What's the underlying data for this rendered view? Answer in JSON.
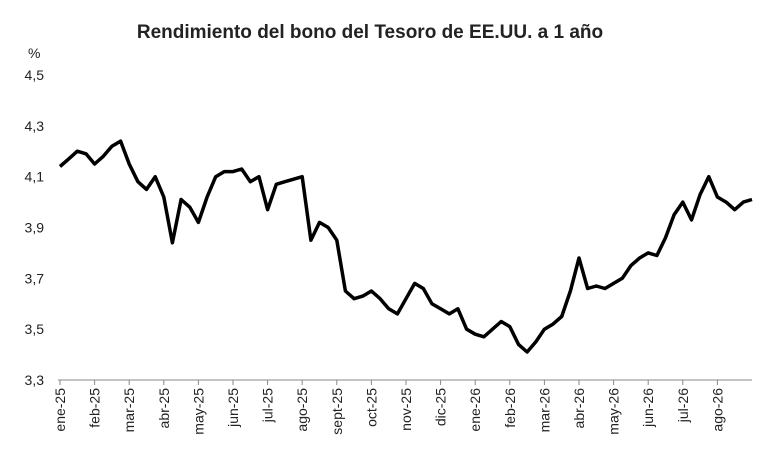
{
  "chart_data": {
    "type": "line",
    "title": "Rendimiento del bono del Tesoro de EE.UU. a 1 año",
    "y_label": "%",
    "categories": [
      "ene-25",
      null,
      null,
      null,
      "feb-25",
      null,
      null,
      null,
      "mar-25",
      null,
      null,
      null,
      "abr-25",
      null,
      null,
      null,
      "may-25",
      null,
      null,
      null,
      "jun-25",
      null,
      null,
      null,
      "jul-25",
      null,
      null,
      null,
      "ago-25",
      null,
      null,
      null,
      "sept-25",
      null,
      null,
      null,
      "oct-25",
      null,
      null,
      null,
      "nov-25",
      null,
      null,
      null,
      "dic-25",
      null,
      null,
      null,
      "ene-26",
      null,
      null,
      null,
      "feb-26",
      null,
      null,
      null,
      "mar-26",
      null,
      null,
      null,
      "abr-26",
      null,
      null,
      null,
      "may-26",
      null,
      null,
      null,
      "jun-26",
      null,
      null,
      null,
      "jul-26",
      null,
      null,
      null,
      "ago-26",
      null,
      null,
      null,
      null
    ],
    "series": [
      {
        "name": "Rendimiento",
        "color": "#000000",
        "values": [
          4.14,
          4.17,
          4.2,
          4.19,
          4.15,
          4.18,
          4.22,
          4.24,
          4.15,
          4.08,
          4.05,
          4.1,
          4.02,
          3.84,
          4.01,
          3.98,
          3.92,
          4.02,
          4.1,
          4.12,
          4.12,
          4.13,
          4.08,
          4.1,
          3.97,
          4.07,
          4.08,
          4.09,
          4.1,
          3.85,
          3.92,
          3.9,
          3.85,
          3.65,
          3.62,
          3.63,
          3.65,
          3.62,
          3.58,
          3.56,
          3.62,
          3.68,
          3.66,
          3.6,
          3.58,
          3.56,
          3.58,
          3.5,
          3.48,
          3.47,
          3.5,
          3.53,
          3.51,
          3.44,
          3.41,
          3.45,
          3.5,
          3.52,
          3.55,
          3.65,
          3.78,
          3.66,
          3.67,
          3.66,
          3.68,
          3.7,
          3.75,
          3.78,
          3.8,
          3.79,
          3.86,
          3.95,
          4.0,
          3.93,
          4.03,
          4.1,
          4.02,
          4.0,
          3.97,
          4.0,
          4.01
        ]
      }
    ],
    "ylim": [
      3.3,
      4.5
    ],
    "yticks": [
      {
        "value": 3.3,
        "label": "3,3"
      },
      {
        "value": 3.5,
        "label": "3,5"
      },
      {
        "value": 3.7,
        "label": "3,7"
      },
      {
        "value": 3.9,
        "label": "3,9"
      },
      {
        "value": 4.1,
        "label": "4,1"
      },
      {
        "value": 4.3,
        "label": "4,3"
      },
      {
        "value": 4.5,
        "label": "4,5"
      }
    ],
    "grid": false
  }
}
